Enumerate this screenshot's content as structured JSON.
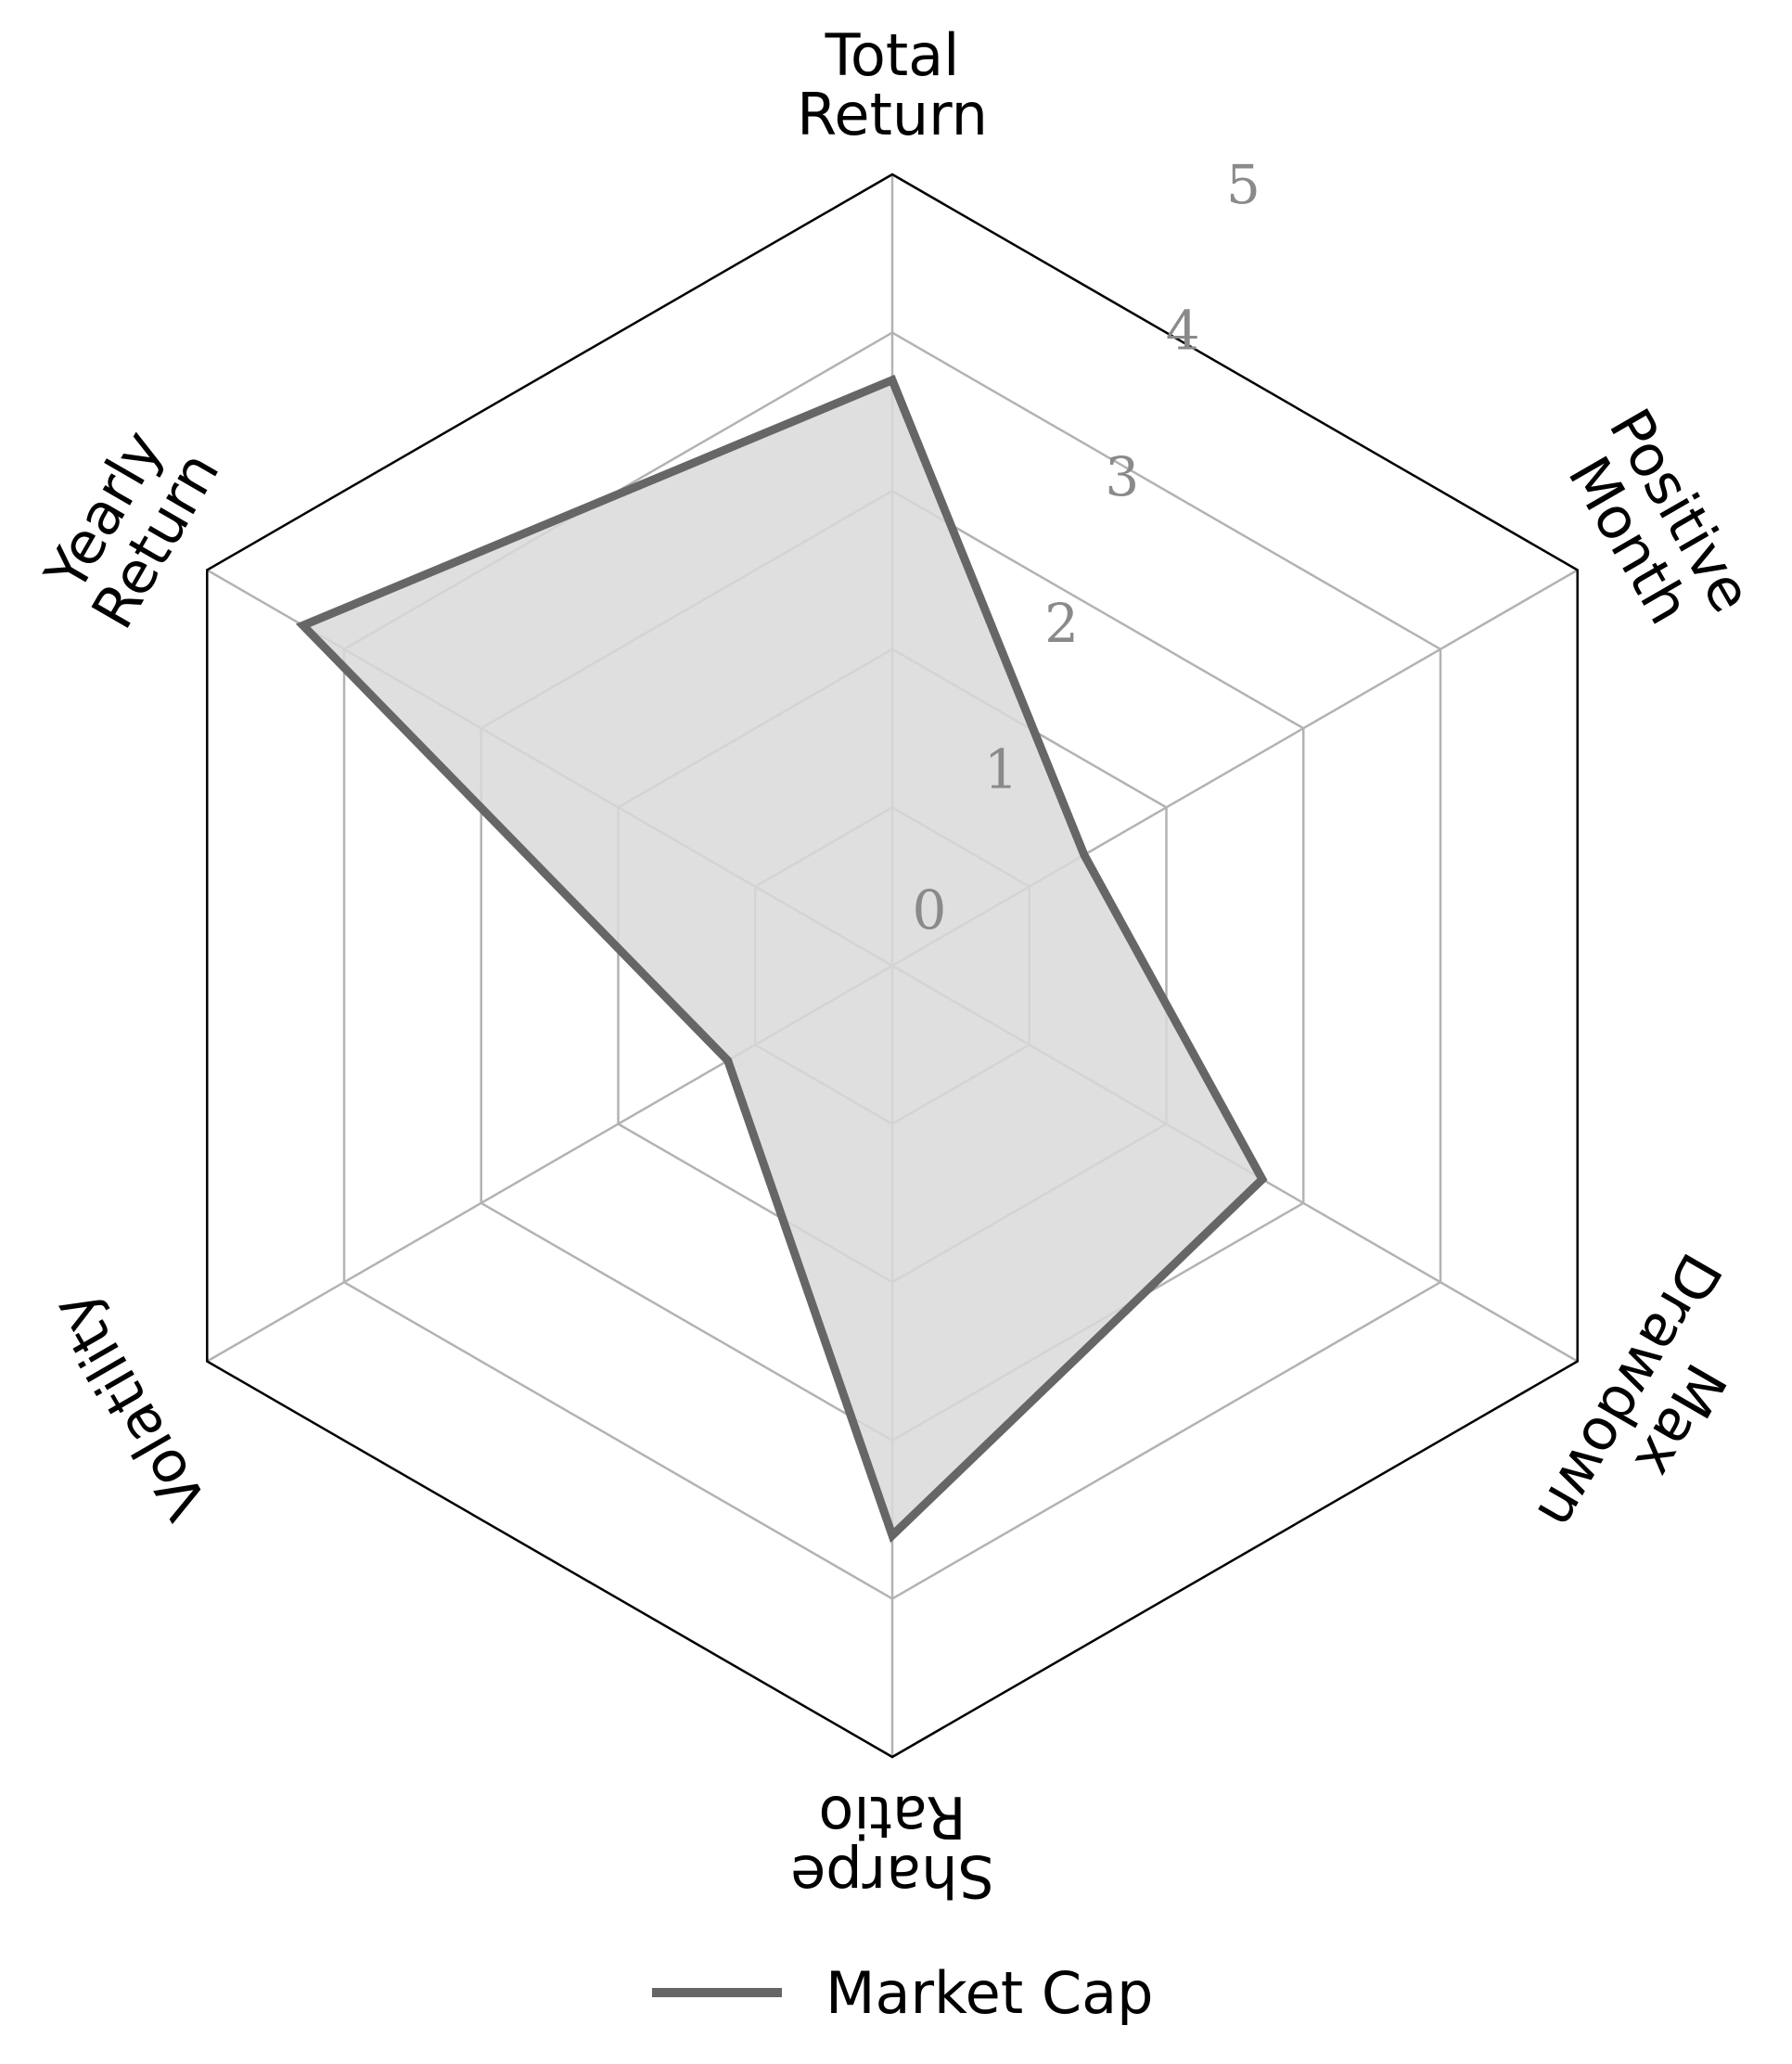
{
  "chart_data": {
    "type": "radar",
    "title": "",
    "axes": [
      "Total Return",
      "Positive Month",
      "Max Drawdown",
      "Sharpe Ratio",
      "Volatility",
      "Yearly Return"
    ],
    "axis_label_lines": [
      [
        "Total",
        "Return"
      ],
      [
        "Positive",
        "Month"
      ],
      [
        "Max",
        "Drawdown"
      ],
      [
        "Sharpe",
        "Ratio"
      ],
      [
        "Volatility"
      ],
      [
        "Yearly",
        "Return"
      ]
    ],
    "rlim": [
      0,
      5
    ],
    "ticks": [
      "0",
      "1",
      "2",
      "3",
      "4",
      "5"
    ],
    "grid": true,
    "legend_position": "bottom",
    "series": [
      {
        "name": "Market Cap",
        "values": [
          3.7,
          1.4,
          2.7,
          3.6,
          1.2,
          4.3
        ],
        "color": "#666666",
        "fill": "#d9d9d9"
      }
    ]
  }
}
